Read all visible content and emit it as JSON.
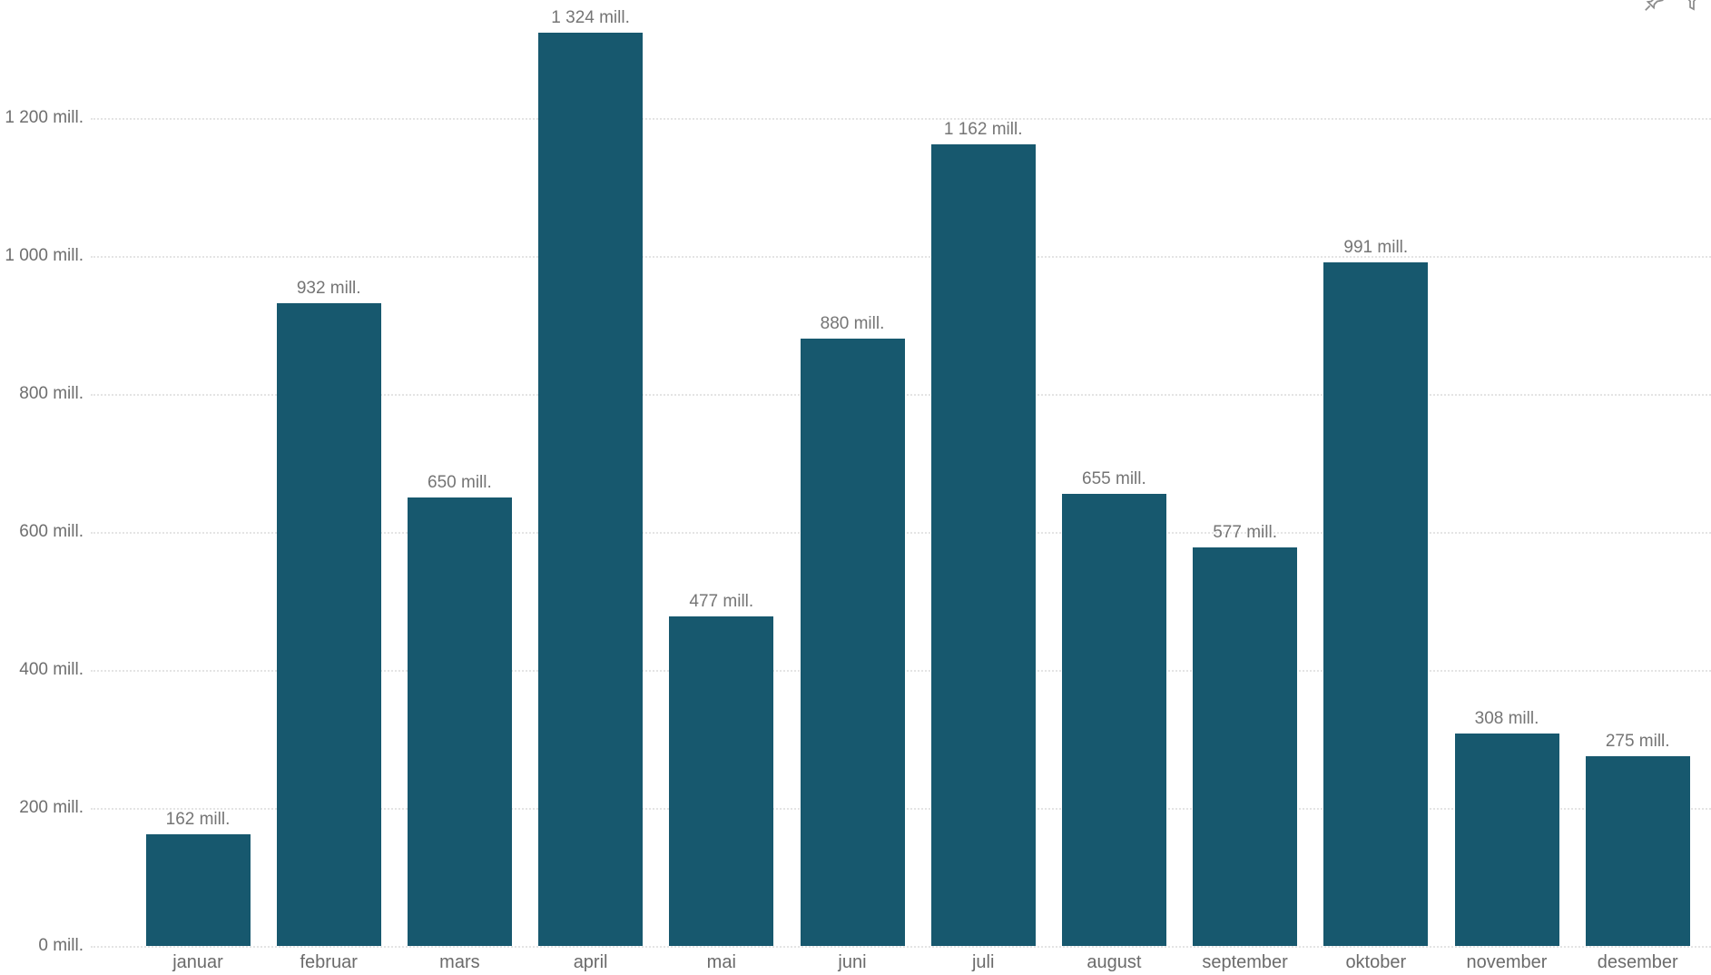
{
  "chart_data": {
    "type": "bar",
    "categories": [
      "januar",
      "februar",
      "mars",
      "april",
      "mai",
      "juni",
      "juli",
      "august",
      "september",
      "oktober",
      "november",
      "desember"
    ],
    "values": [
      162,
      932,
      650,
      1324,
      477,
      880,
      1162,
      655,
      577,
      991,
      308,
      275
    ],
    "data_labels": [
      "162 mill.",
      "932 mill.",
      "650 mill.",
      "1 324 mill.",
      "477 mill.",
      "880 mill.",
      "1 162 mill.",
      "655 mill.",
      "577 mill.",
      "991 mill.",
      "308 mill.",
      "275 mill."
    ],
    "title": "",
    "xlabel": "",
    "ylabel": "",
    "ylim": [
      0,
      1370
    ],
    "grid": "horizontal-dotted",
    "legend": "none",
    "y_ticks": [
      {
        "value": 0,
        "label": "0 mill."
      },
      {
        "value": 200,
        "label": "200 mill."
      },
      {
        "value": 400,
        "label": "400 mill."
      },
      {
        "value": 600,
        "label": "600 mill."
      },
      {
        "value": 800,
        "label": "800 mill."
      },
      {
        "value": 1000,
        "label": "1 000 mill."
      },
      {
        "value": 1200,
        "label": "1 200 mill."
      }
    ],
    "colors": {
      "bar": "#17586e",
      "data_label": "#757575",
      "axis_label": "#6b6b6b",
      "gridline": "#e4e4e4"
    }
  },
  "visual_header": {
    "icons": [
      "pin-icon",
      "filter-icon"
    ]
  }
}
